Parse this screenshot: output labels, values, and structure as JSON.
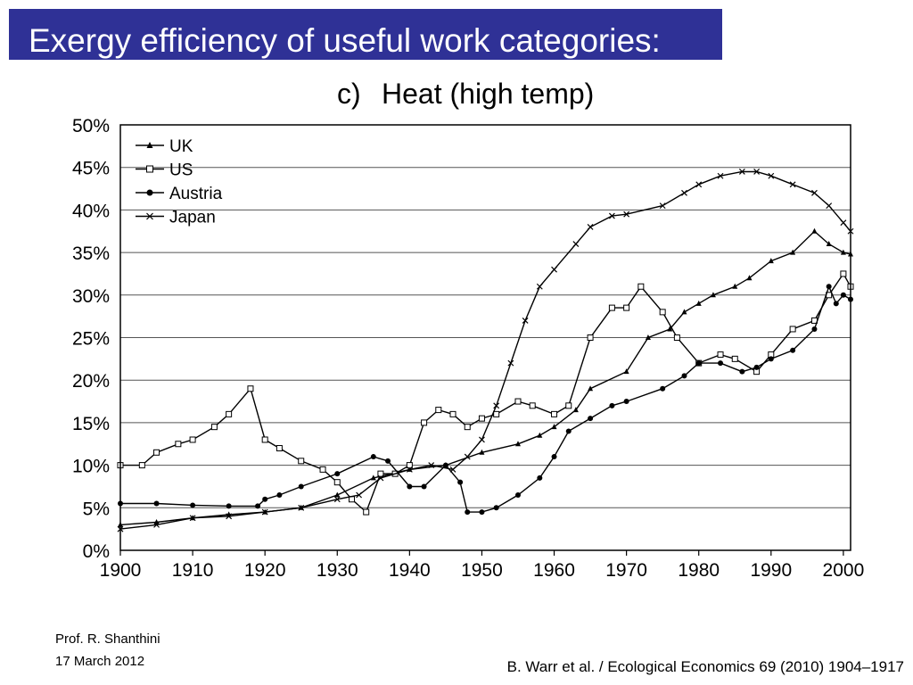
{
  "slide": {
    "title": "Exergy efficiency of useful work categories:",
    "author": "Prof. R. Shanthini",
    "date": "17 March 2012",
    "citation": "B. Warr et al. / Ecological Economics 69 (2010) 1904–1917"
  },
  "chart_data": {
    "type": "line",
    "panel_label": "c)",
    "title": "Heat (high temp)",
    "xlabel": "",
    "ylabel": "",
    "xlim": [
      1900,
      2001
    ],
    "ylim": [
      0,
      50
    ],
    "x_ticks": [
      1900,
      1910,
      1920,
      1930,
      1940,
      1950,
      1960,
      1970,
      1980,
      1990,
      2000
    ],
    "y_ticks": [
      0,
      5,
      10,
      15,
      20,
      25,
      30,
      35,
      40,
      45,
      50
    ],
    "y_tick_labels": [
      "0%",
      "5%",
      "10%",
      "15%",
      "20%",
      "25%",
      "30%",
      "35%",
      "40%",
      "45%",
      "50%"
    ],
    "grid": "horizontal",
    "legend_position": "top-left",
    "series": [
      {
        "name": "UK",
        "marker": "triangle",
        "points": [
          [
            1900,
            3
          ],
          [
            1905,
            3.3
          ],
          [
            1910,
            3.8
          ],
          [
            1915,
            4.2
          ],
          [
            1920,
            4.5
          ],
          [
            1925,
            5
          ],
          [
            1930,
            6.5
          ],
          [
            1935,
            8.5
          ],
          [
            1940,
            9.5
          ],
          [
            1945,
            10
          ],
          [
            1950,
            11.5
          ],
          [
            1955,
            12.5
          ],
          [
            1958,
            13.5
          ],
          [
            1960,
            14.5
          ],
          [
            1963,
            16.5
          ],
          [
            1965,
            19
          ],
          [
            1970,
            21
          ],
          [
            1973,
            25
          ],
          [
            1976,
            26
          ],
          [
            1978,
            28
          ],
          [
            1980,
            29
          ],
          [
            1982,
            30
          ],
          [
            1985,
            31
          ],
          [
            1987,
            32
          ],
          [
            1990,
            34
          ],
          [
            1993,
            35
          ],
          [
            1996,
            37.5
          ],
          [
            1998,
            36
          ],
          [
            2000,
            35
          ],
          [
            2001,
            34.8
          ]
        ]
      },
      {
        "name": "US",
        "marker": "square",
        "points": [
          [
            1900,
            10
          ],
          [
            1903,
            10
          ],
          [
            1905,
            11.5
          ],
          [
            1908,
            12.5
          ],
          [
            1910,
            13
          ],
          [
            1913,
            14.5
          ],
          [
            1915,
            16
          ],
          [
            1918,
            19
          ],
          [
            1920,
            13
          ],
          [
            1922,
            12
          ],
          [
            1925,
            10.5
          ],
          [
            1928,
            9.5
          ],
          [
            1930,
            8
          ],
          [
            1932,
            6
          ],
          [
            1934,
            4.5
          ],
          [
            1936,
            9
          ],
          [
            1938,
            9
          ],
          [
            1940,
            10
          ],
          [
            1942,
            15
          ],
          [
            1944,
            16.5
          ],
          [
            1946,
            16
          ],
          [
            1948,
            14.5
          ],
          [
            1950,
            15.5
          ],
          [
            1952,
            16
          ],
          [
            1955,
            17.5
          ],
          [
            1957,
            17
          ],
          [
            1960,
            16
          ],
          [
            1962,
            17
          ],
          [
            1965,
            25
          ],
          [
            1968,
            28.5
          ],
          [
            1970,
            28.5
          ],
          [
            1972,
            31
          ],
          [
            1975,
            28
          ],
          [
            1977,
            25
          ],
          [
            1980,
            22
          ],
          [
            1983,
            23
          ],
          [
            1985,
            22.5
          ],
          [
            1988,
            21
          ],
          [
            1990,
            23
          ],
          [
            1993,
            26
          ],
          [
            1996,
            27
          ],
          [
            1998,
            30
          ],
          [
            2000,
            32.5
          ],
          [
            2001,
            31
          ]
        ]
      },
      {
        "name": "Austria",
        "marker": "circle",
        "points": [
          [
            1900,
            5.5
          ],
          [
            1905,
            5.5
          ],
          [
            1910,
            5.3
          ],
          [
            1915,
            5.2
          ],
          [
            1919,
            5.2
          ],
          [
            1920,
            6
          ],
          [
            1922,
            6.5
          ],
          [
            1925,
            7.5
          ],
          [
            1930,
            9
          ],
          [
            1935,
            11
          ],
          [
            1937,
            10.5
          ],
          [
            1940,
            7.5
          ],
          [
            1942,
            7.5
          ],
          [
            1945,
            10
          ],
          [
            1947,
            8
          ],
          [
            1948,
            4.5
          ],
          [
            1950,
            4.5
          ],
          [
            1952,
            5
          ],
          [
            1955,
            6.5
          ],
          [
            1958,
            8.5
          ],
          [
            1960,
            11
          ],
          [
            1962,
            14
          ],
          [
            1965,
            15.5
          ],
          [
            1968,
            17
          ],
          [
            1970,
            17.5
          ],
          [
            1975,
            19
          ],
          [
            1978,
            20.5
          ],
          [
            1980,
            22
          ],
          [
            1983,
            22
          ],
          [
            1986,
            21
          ],
          [
            1988,
            21.5
          ],
          [
            1990,
            22.5
          ],
          [
            1993,
            23.5
          ],
          [
            1996,
            26
          ],
          [
            1998,
            31
          ],
          [
            1999,
            29
          ],
          [
            2000,
            30
          ],
          [
            2001,
            29.5
          ]
        ]
      },
      {
        "name": "Japan",
        "marker": "x",
        "points": [
          [
            1900,
            2.5
          ],
          [
            1905,
            3
          ],
          [
            1910,
            3.8
          ],
          [
            1915,
            4
          ],
          [
            1920,
            4.5
          ],
          [
            1925,
            5
          ],
          [
            1930,
            6
          ],
          [
            1933,
            6.5
          ],
          [
            1936,
            8.5
          ],
          [
            1940,
            9.5
          ],
          [
            1943,
            10
          ],
          [
            1946,
            9.5
          ],
          [
            1948,
            11
          ],
          [
            1950,
            13
          ],
          [
            1952,
            17
          ],
          [
            1954,
            22
          ],
          [
            1956,
            27
          ],
          [
            1958,
            31
          ],
          [
            1960,
            33
          ],
          [
            1963,
            36
          ],
          [
            1965,
            38
          ],
          [
            1968,
            39.3
          ],
          [
            1970,
            39.5
          ],
          [
            1975,
            40.5
          ],
          [
            1978,
            42
          ],
          [
            1980,
            43
          ],
          [
            1983,
            44
          ],
          [
            1986,
            44.5
          ],
          [
            1988,
            44.5
          ],
          [
            1990,
            44
          ],
          [
            1993,
            43
          ],
          [
            1996,
            42
          ],
          [
            1998,
            40.5
          ],
          [
            2000,
            38.5
          ],
          [
            2001,
            37.5
          ]
        ]
      }
    ]
  }
}
